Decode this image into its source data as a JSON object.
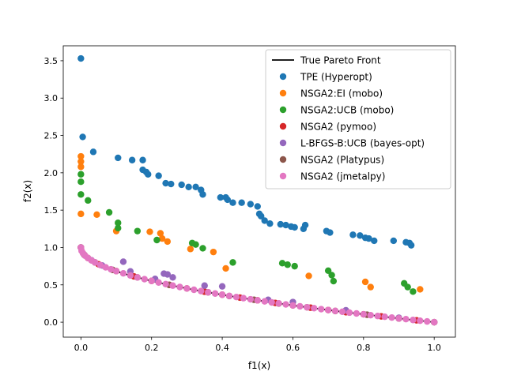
{
  "chart_data": {
    "type": "scatter",
    "title": "",
    "xlabel": "f1(x)",
    "ylabel": "f2(x)",
    "xlim": [
      -0.05,
      1.06
    ],
    "ylim": [
      -0.2,
      3.7
    ],
    "xticks": [
      0.0,
      0.2,
      0.4,
      0.6,
      0.8,
      1.0
    ],
    "yticks": [
      0.0,
      0.5,
      1.0,
      1.5,
      2.0,
      2.5,
      3.0,
      3.5
    ],
    "xtick_labels": [
      "0.0",
      "0.2",
      "0.4",
      "0.6",
      "0.8",
      "1.0"
    ],
    "ytick_labels": [
      "0.0",
      "0.5",
      "1.0",
      "1.5",
      "2.0",
      "2.5",
      "3.0",
      "3.5"
    ],
    "legend_position": "top-right",
    "grid": false,
    "front": {
      "name": "True Pareto Front",
      "color": "#000000",
      "formula": "f2 = 1 - sqrt(f1)"
    },
    "series": [
      {
        "name": "TPE (Hyperopt)",
        "color": "#1f77b4",
        "points": [
          [
            0.0,
            3.53
          ],
          [
            0.005,
            2.48
          ],
          [
            0.035,
            2.28
          ],
          [
            0.105,
            2.2
          ],
          [
            0.145,
            2.17
          ],
          [
            0.175,
            2.17
          ],
          [
            0.175,
            2.04
          ],
          [
            0.185,
            2.01
          ],
          [
            0.19,
            1.98
          ],
          [
            0.22,
            1.96
          ],
          [
            0.24,
            1.86
          ],
          [
            0.255,
            1.85
          ],
          [
            0.285,
            1.84
          ],
          [
            0.305,
            1.81
          ],
          [
            0.325,
            1.81
          ],
          [
            0.34,
            1.77
          ],
          [
            0.345,
            1.71
          ],
          [
            0.395,
            1.67
          ],
          [
            0.41,
            1.67
          ],
          [
            0.415,
            1.64
          ],
          [
            0.43,
            1.6
          ],
          [
            0.455,
            1.6
          ],
          [
            0.48,
            1.58
          ],
          [
            0.5,
            1.55
          ],
          [
            0.505,
            1.45
          ],
          [
            0.51,
            1.42
          ],
          [
            0.52,
            1.36
          ],
          [
            0.535,
            1.32
          ],
          [
            0.565,
            1.31
          ],
          [
            0.58,
            1.3
          ],
          [
            0.595,
            1.28
          ],
          [
            0.605,
            1.27
          ],
          [
            0.63,
            1.25
          ],
          [
            0.635,
            1.3
          ],
          [
            0.695,
            1.22
          ],
          [
            0.705,
            1.2
          ],
          [
            0.77,
            1.17
          ],
          [
            0.79,
            1.16
          ],
          [
            0.805,
            1.13
          ],
          [
            0.815,
            1.12
          ],
          [
            0.83,
            1.09
          ],
          [
            0.885,
            1.09
          ],
          [
            0.92,
            1.07
          ],
          [
            0.93,
            1.06
          ],
          [
            0.935,
            1.03
          ]
        ]
      },
      {
        "name": "NSGA2:EI (mobo)",
        "color": "#ff7f0e",
        "points": [
          [
            0.0,
            2.22
          ],
          [
            0.0,
            2.15
          ],
          [
            0.0,
            2.08
          ],
          [
            0.0,
            1.45
          ],
          [
            0.045,
            1.44
          ],
          [
            0.1,
            1.22
          ],
          [
            0.195,
            1.21
          ],
          [
            0.225,
            1.19
          ],
          [
            0.23,
            1.12
          ],
          [
            0.245,
            1.08
          ],
          [
            0.31,
            0.98
          ],
          [
            0.375,
            0.94
          ],
          [
            0.41,
            0.72
          ],
          [
            0.645,
            0.62
          ],
          [
            0.805,
            0.54
          ],
          [
            0.82,
            0.47
          ],
          [
            0.96,
            0.44
          ]
        ]
      },
      {
        "name": "NSGA2:UCB (mobo)",
        "color": "#2ca02c",
        "points": [
          [
            0.0,
            1.98
          ],
          [
            0.0,
            1.88
          ],
          [
            0.0,
            1.71
          ],
          [
            0.02,
            1.63
          ],
          [
            0.08,
            1.47
          ],
          [
            0.105,
            1.33
          ],
          [
            0.105,
            1.26
          ],
          [
            0.16,
            1.22
          ],
          [
            0.215,
            1.1
          ],
          [
            0.315,
            1.06
          ],
          [
            0.325,
            1.04
          ],
          [
            0.345,
            0.99
          ],
          [
            0.43,
            0.8
          ],
          [
            0.57,
            0.79
          ],
          [
            0.585,
            0.77
          ],
          [
            0.605,
            0.75
          ],
          [
            0.7,
            0.69
          ],
          [
            0.71,
            0.63
          ],
          [
            0.715,
            0.55
          ],
          [
            0.915,
            0.52
          ],
          [
            0.925,
            0.47
          ],
          [
            0.94,
            0.41
          ]
        ]
      },
      {
        "name": "NSGA2 (pymoo)",
        "color": "#d62728",
        "points": [
          [
            0.0,
            1.0
          ],
          [
            0.02,
            0.859
          ],
          [
            0.05,
            0.776
          ],
          [
            0.1,
            0.684
          ],
          [
            0.15,
            0.613
          ],
          [
            0.2,
            0.553
          ],
          [
            0.25,
            0.5
          ],
          [
            0.3,
            0.452
          ],
          [
            0.35,
            0.408
          ],
          [
            0.4,
            0.368
          ],
          [
            0.45,
            0.329
          ],
          [
            0.5,
            0.293
          ],
          [
            0.55,
            0.258
          ],
          [
            0.6,
            0.225
          ],
          [
            0.65,
            0.194
          ],
          [
            0.7,
            0.163
          ],
          [
            0.75,
            0.134
          ],
          [
            0.8,
            0.106
          ],
          [
            0.85,
            0.078
          ],
          [
            0.9,
            0.051
          ],
          [
            0.95,
            0.025
          ],
          [
            1.0,
            0.0
          ]
        ]
      },
      {
        "name": "L-BFGS-B:UCB (bayes-opt)",
        "color": "#9467bd",
        "points": [
          [
            0.0,
            1.0
          ],
          [
            0.01,
            0.9
          ],
          [
            0.03,
            0.83
          ],
          [
            0.06,
            0.76
          ],
          [
            0.12,
            0.81
          ],
          [
            0.14,
            0.68
          ],
          [
            0.21,
            0.58
          ],
          [
            0.235,
            0.65
          ],
          [
            0.245,
            0.64
          ],
          [
            0.26,
            0.6
          ],
          [
            0.35,
            0.49
          ],
          [
            0.4,
            0.48
          ],
          [
            0.53,
            0.3
          ],
          [
            0.6,
            0.27
          ],
          [
            0.75,
            0.16
          ],
          [
            0.9,
            0.06
          ],
          [
            1.0,
            0.0
          ]
        ]
      },
      {
        "name": "NSGA2 (Platypus)",
        "color": "#8c564b",
        "points": [
          [
            0.0,
            1.0
          ],
          [
            0.01,
            0.9
          ],
          [
            0.04,
            0.8
          ],
          [
            0.09,
            0.7
          ],
          [
            0.16,
            0.6
          ],
          [
            0.25,
            0.5
          ],
          [
            0.36,
            0.4
          ],
          [
            0.42,
            0.35
          ],
          [
            0.49,
            0.3
          ],
          [
            0.56,
            0.25
          ],
          [
            0.64,
            0.2
          ],
          [
            0.72,
            0.15
          ],
          [
            0.81,
            0.1
          ],
          [
            0.9,
            0.05
          ],
          [
            1.0,
            0.0
          ]
        ]
      },
      {
        "name": "NSGA2 (jmetalpy)",
        "color": "#e377c2",
        "points": [
          [
            0.0,
            1.0
          ],
          [
            0.002,
            0.955
          ],
          [
            0.006,
            0.923
          ],
          [
            0.012,
            0.89
          ],
          [
            0.02,
            0.859
          ],
          [
            0.03,
            0.827
          ],
          [
            0.04,
            0.8
          ],
          [
            0.055,
            0.765
          ],
          [
            0.07,
            0.735
          ],
          [
            0.085,
            0.708
          ],
          [
            0.1,
            0.684
          ],
          [
            0.12,
            0.654
          ],
          [
            0.14,
            0.626
          ],
          [
            0.16,
            0.6
          ],
          [
            0.18,
            0.576
          ],
          [
            0.2,
            0.553
          ],
          [
            0.22,
            0.531
          ],
          [
            0.24,
            0.51
          ],
          [
            0.26,
            0.49
          ],
          [
            0.28,
            0.471
          ],
          [
            0.3,
            0.452
          ],
          [
            0.32,
            0.434
          ],
          [
            0.34,
            0.417
          ],
          [
            0.36,
            0.4
          ],
          [
            0.38,
            0.384
          ],
          [
            0.4,
            0.368
          ],
          [
            0.42,
            0.352
          ],
          [
            0.44,
            0.337
          ],
          [
            0.46,
            0.322
          ],
          [
            0.48,
            0.307
          ],
          [
            0.5,
            0.293
          ],
          [
            0.52,
            0.279
          ],
          [
            0.54,
            0.265
          ],
          [
            0.56,
            0.252
          ],
          [
            0.58,
            0.238
          ],
          [
            0.6,
            0.225
          ],
          [
            0.62,
            0.213
          ],
          [
            0.64,
            0.2
          ],
          [
            0.66,
            0.188
          ],
          [
            0.68,
            0.175
          ],
          [
            0.7,
            0.163
          ],
          [
            0.72,
            0.151
          ],
          [
            0.74,
            0.14
          ],
          [
            0.76,
            0.128
          ],
          [
            0.78,
            0.117
          ],
          [
            0.8,
            0.106
          ],
          [
            0.82,
            0.094
          ],
          [
            0.84,
            0.083
          ],
          [
            0.86,
            0.073
          ],
          [
            0.88,
            0.062
          ],
          [
            0.9,
            0.051
          ],
          [
            0.92,
            0.041
          ],
          [
            0.94,
            0.03
          ],
          [
            0.96,
            0.02
          ],
          [
            0.98,
            0.01
          ],
          [
            1.0,
            0.0
          ]
        ]
      }
    ]
  }
}
